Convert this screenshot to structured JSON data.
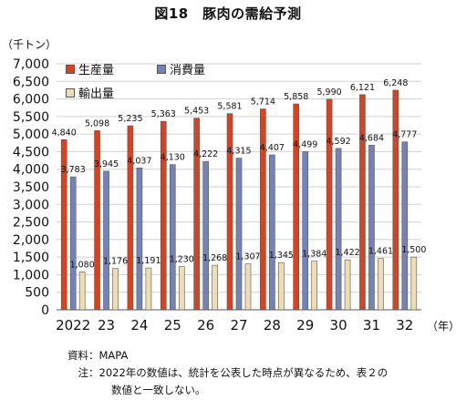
{
  "title": "図18　豚肉の需給予測",
  "y_unit": "（千トン）",
  "x_unit": "（年）",
  "colors": {
    "production": "#d9421f",
    "consumption": "#7383b8",
    "export": "#efdcb2",
    "grid": "#d0d0d0"
  },
  "chart_data": {
    "type": "bar",
    "categories": [
      "2022",
      "23",
      "24",
      "25",
      "26",
      "27",
      "28",
      "29",
      "30",
      "31",
      "32"
    ],
    "series": [
      {
        "name": "生産量",
        "values": [
          4840,
          5098,
          5235,
          5363,
          5453,
          5581,
          5714,
          5858,
          5990,
          6121,
          6248
        ],
        "labels": [
          "4,840",
          "5,098",
          "5,235",
          "5,363",
          "5,453",
          "5,581",
          "5,714",
          "5,858",
          "5,990",
          "6,121",
          "6,248"
        ]
      },
      {
        "name": "消費量",
        "values": [
          3783,
          3945,
          4037,
          4130,
          4222,
          4315,
          4407,
          4499,
          4592,
          4684,
          4777
        ],
        "labels": [
          "3,783",
          "3,945",
          "4,037",
          "4,130",
          "4,222",
          "4,315",
          "4,407",
          "4,499",
          "4,592",
          "4,684",
          "4,777"
        ]
      },
      {
        "name": "輸出量",
        "values": [
          1080,
          1176,
          1191,
          1230,
          1268,
          1307,
          1345,
          1384,
          1422,
          1461,
          1500
        ],
        "labels": [
          "1,080",
          "1,176",
          "1,191",
          "1,230",
          "1,268",
          "1,307",
          "1,345",
          "1,384",
          "1,422",
          "1,461",
          "1,500"
        ]
      }
    ],
    "ylim": [
      0,
      7000
    ],
    "yticks": [
      0,
      500,
      1000,
      1500,
      2000,
      2500,
      3000,
      3500,
      4000,
      4500,
      5000,
      5500,
      6000,
      6500,
      7000
    ],
    "ytick_labels": [
      "0",
      "500",
      "1,000",
      "1,500",
      "2,000",
      "2,500",
      "3,000",
      "3,500",
      "4,000",
      "4,500",
      "5,000",
      "5,500",
      "6,000",
      "6,500",
      "7,000"
    ],
    "grid": true,
    "legend_position": "top-left"
  },
  "notes": [
    {
      "label": "資料：",
      "text": "MAPA"
    },
    {
      "label": "　注：",
      "text": "2022年の数値は、統計を公表した時点が異なるため、表２の"
    },
    {
      "label": "",
      "text": "数値と一致しない。"
    }
  ]
}
